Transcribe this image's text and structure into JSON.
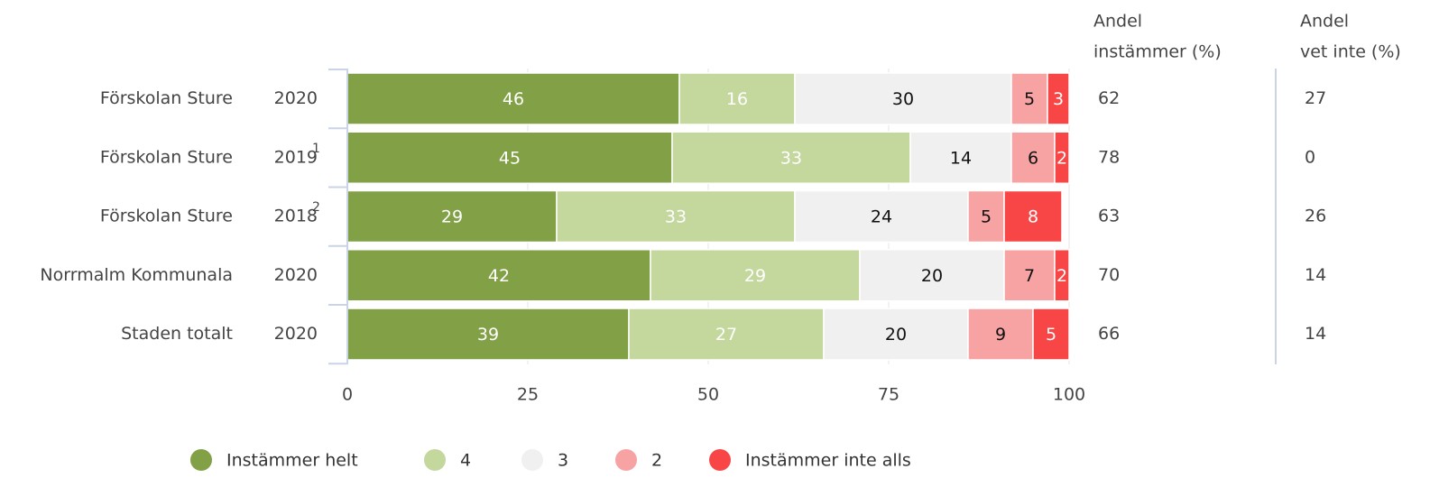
{
  "chart_data": {
    "type": "bar",
    "orientation": "horizontal",
    "stacked": true,
    "categories": [
      "Förskolan Sture",
      "Förskolan Sture",
      "Förskolan Sture",
      "Norrmalm Kommunala",
      "Staden totalt"
    ],
    "years": [
      "2020",
      "2019",
      "2018",
      "2020",
      "2020"
    ],
    "year_superscripts": [
      "",
      "1",
      "2",
      "",
      ""
    ],
    "series": [
      {
        "name": "Instämmer helt",
        "color": "#82a046",
        "label_color": "#ffffff",
        "values": [
          46,
          45,
          29,
          42,
          39
        ]
      },
      {
        "name": "4",
        "color": "#c4d89d",
        "label_color": "#ffffff",
        "values": [
          16,
          33,
          33,
          29,
          27
        ]
      },
      {
        "name": "3",
        "color": "#f0f0f0",
        "label_color": "#111111",
        "values": [
          30,
          14,
          24,
          20,
          20
        ]
      },
      {
        "name": "2",
        "color": "#f8a3a3",
        "label_color": "#111111",
        "values": [
          5,
          6,
          5,
          7,
          9
        ]
      },
      {
        "name": "Instämmer inte alls",
        "color": "#f84646",
        "label_color": "#ffffff",
        "values": [
          3,
          2,
          8,
          2,
          5
        ]
      }
    ],
    "xlim": [
      0,
      100
    ],
    "xticks": [
      "0",
      "25",
      "50",
      "75",
      "100"
    ],
    "grid": true,
    "legend_position": "bottom",
    "side_columns": [
      {
        "header": [
          "Andel",
          "instämmer (%)"
        ],
        "values": [
          "62",
          "78",
          "63",
          "70",
          "66"
        ]
      },
      {
        "header": [
          "Andel",
          "vet inte (%)"
        ],
        "values": [
          "27",
          "0",
          "26",
          "14",
          "14"
        ]
      }
    ]
  }
}
